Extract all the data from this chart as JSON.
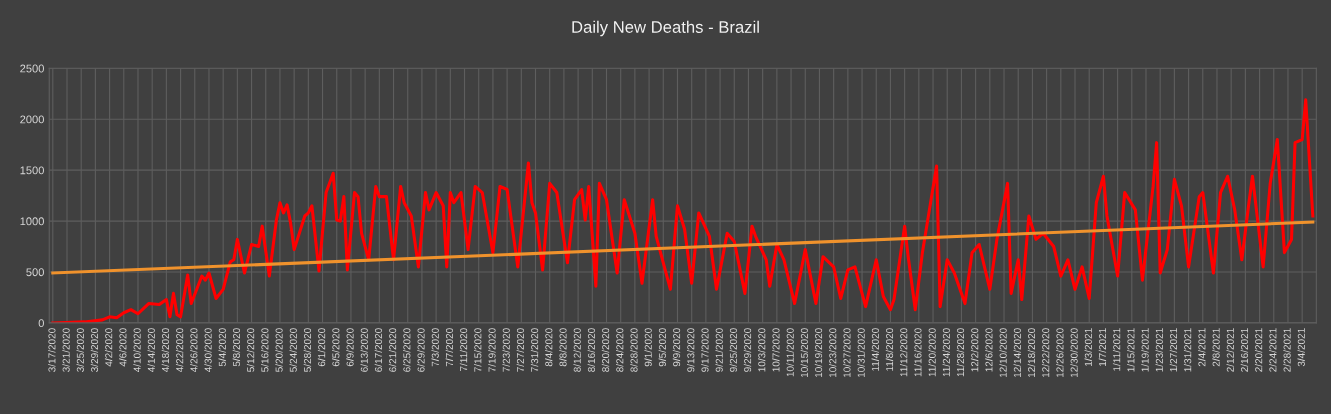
{
  "chart_data": {
    "type": "line",
    "title": "Daily New Deaths - Brazil",
    "ylim": [
      0,
      2500
    ],
    "yticks": [
      0,
      500,
      1000,
      1500,
      2000,
      2500
    ],
    "xlim": [
      "2020-03-16",
      "2021-03-08"
    ],
    "xticks": [
      {
        "value": "2020-03-17",
        "label": "3/17/2020"
      },
      {
        "value": "2020-03-21",
        "label": "3/21/2020"
      },
      {
        "value": "2020-03-25",
        "label": "3/25/2020"
      },
      {
        "value": "2020-03-29",
        "label": "3/29/2020"
      },
      {
        "value": "2020-04-02",
        "label": "4/2/2020"
      },
      {
        "value": "2020-04-06",
        "label": "4/6/2020"
      },
      {
        "value": "2020-04-10",
        "label": "4/10/2020"
      },
      {
        "value": "2020-04-14",
        "label": "4/14/2020"
      },
      {
        "value": "2020-04-18",
        "label": "4/18/2020"
      },
      {
        "value": "2020-04-22",
        "label": "4/22/2020"
      },
      {
        "value": "2020-04-26",
        "label": "4/26/2020"
      },
      {
        "value": "2020-04-30",
        "label": "4/30/2020"
      },
      {
        "value": "2020-05-04",
        "label": "5/4/2020"
      },
      {
        "value": "2020-05-08",
        "label": "5/8/2020"
      },
      {
        "value": "2020-05-12",
        "label": "5/12/2020"
      },
      {
        "value": "2020-05-16",
        "label": "5/16/2020"
      },
      {
        "value": "2020-05-20",
        "label": "5/20/2020"
      },
      {
        "value": "2020-05-24",
        "label": "5/24/2020"
      },
      {
        "value": "2020-05-28",
        "label": "5/28/2020"
      },
      {
        "value": "2020-06-01",
        "label": "6/1/2020"
      },
      {
        "value": "2020-06-05",
        "label": "6/5/2020"
      },
      {
        "value": "2020-06-09",
        "label": "6/9/2020"
      },
      {
        "value": "2020-06-13",
        "label": "6/13/2020"
      },
      {
        "value": "2020-06-17",
        "label": "6/17/2020"
      },
      {
        "value": "2020-06-21",
        "label": "6/21/2020"
      },
      {
        "value": "2020-06-25",
        "label": "6/25/2020"
      },
      {
        "value": "2020-06-29",
        "label": "6/29/2020"
      },
      {
        "value": "2020-07-03",
        "label": "7/3/2020"
      },
      {
        "value": "2020-07-07",
        "label": "7/7/2020"
      },
      {
        "value": "2020-07-11",
        "label": "7/11/2020"
      },
      {
        "value": "2020-07-15",
        "label": "7/15/2020"
      },
      {
        "value": "2020-07-19",
        "label": "7/19/2020"
      },
      {
        "value": "2020-07-23",
        "label": "7/23/2020"
      },
      {
        "value": "2020-07-27",
        "label": "7/27/2020"
      },
      {
        "value": "2020-07-31",
        "label": "7/31/2020"
      },
      {
        "value": "2020-08-04",
        "label": "8/4/2020"
      },
      {
        "value": "2020-08-08",
        "label": "8/8/2020"
      },
      {
        "value": "2020-08-12",
        "label": "8/12/2020"
      },
      {
        "value": "2020-08-16",
        "label": "8/16/2020"
      },
      {
        "value": "2020-08-20",
        "label": "8/20/2020"
      },
      {
        "value": "2020-08-24",
        "label": "8/24/2020"
      },
      {
        "value": "2020-08-28",
        "label": "8/28/2020"
      },
      {
        "value": "2020-09-01",
        "label": "9/1/2020"
      },
      {
        "value": "2020-09-05",
        "label": "9/5/2020"
      },
      {
        "value": "2020-09-09",
        "label": "9/9/2020"
      },
      {
        "value": "2020-09-13",
        "label": "9/13/2020"
      },
      {
        "value": "2020-09-17",
        "label": "9/17/2020"
      },
      {
        "value": "2020-09-21",
        "label": "9/21/2020"
      },
      {
        "value": "2020-09-25",
        "label": "9/25/2020"
      },
      {
        "value": "2020-09-29",
        "label": "9/29/2020"
      },
      {
        "value": "2020-10-03",
        "label": "10/3/2020"
      },
      {
        "value": "2020-10-07",
        "label": "10/7/2020"
      },
      {
        "value": "2020-10-11",
        "label": "10/11/2020"
      },
      {
        "value": "2020-10-15",
        "label": "10/15/2020"
      },
      {
        "value": "2020-10-19",
        "label": "10/19/2020"
      },
      {
        "value": "2020-10-23",
        "label": "10/23/2020"
      },
      {
        "value": "2020-10-27",
        "label": "10/27/2020"
      },
      {
        "value": "2020-10-31",
        "label": "10/31/2020"
      },
      {
        "value": "2020-11-04",
        "label": "11/4/2020"
      },
      {
        "value": "2020-11-08",
        "label": "11/8/2020"
      },
      {
        "value": "2020-11-12",
        "label": "11/12/2020"
      },
      {
        "value": "2020-11-16",
        "label": "11/16/2020"
      },
      {
        "value": "2020-11-20",
        "label": "11/20/2020"
      },
      {
        "value": "2020-11-24",
        "label": "11/24/2020"
      },
      {
        "value": "2020-11-28",
        "label": "11/28/2020"
      },
      {
        "value": "2020-12-02",
        "label": "12/2/2020"
      },
      {
        "value": "2020-12-06",
        "label": "12/6/2020"
      },
      {
        "value": "2020-12-10",
        "label": "12/10/2020"
      },
      {
        "value": "2020-12-14",
        "label": "12/14/2020"
      },
      {
        "value": "2020-12-18",
        "label": "12/18/2020"
      },
      {
        "value": "2020-12-22",
        "label": "12/22/2020"
      },
      {
        "value": "2020-12-26",
        "label": "12/26/2020"
      },
      {
        "value": "2020-12-30",
        "label": "12/30/2020"
      },
      {
        "value": "2021-01-03",
        "label": "1/3/2021"
      },
      {
        "value": "2021-01-07",
        "label": "1/7/2021"
      },
      {
        "value": "2021-01-11",
        "label": "1/11/2021"
      },
      {
        "value": "2021-01-15",
        "label": "1/15/2021"
      },
      {
        "value": "2021-01-19",
        "label": "1/19/2021"
      },
      {
        "value": "2021-01-23",
        "label": "1/23/2021"
      },
      {
        "value": "2021-01-27",
        "label": "1/27/2021"
      },
      {
        "value": "2021-01-31",
        "label": "1/31/2021"
      },
      {
        "value": "2021-02-04",
        "label": "2/4/2021"
      },
      {
        "value": "2021-02-08",
        "label": "2/8/2021"
      },
      {
        "value": "2021-02-12",
        "label": "2/12/2021"
      },
      {
        "value": "2021-02-16",
        "label": "2/16/2021"
      },
      {
        "value": "2021-02-20",
        "label": "2/20/2021"
      },
      {
        "value": "2021-02-24",
        "label": "2/24/2021"
      },
      {
        "value": "2021-02-28",
        "label": "2/28/2021"
      },
      {
        "value": "2021-03-04",
        "label": "3/4/2021"
      }
    ],
    "grid": true,
    "marker": "none",
    "line_style": "solid",
    "series": [
      {
        "color": "#ff0000",
        "x": [
          "2020-03-17",
          "2020-03-26",
          "2020-03-31",
          "2020-04-02",
          "2020-04-04",
          "2020-04-06",
          "2020-04-08",
          "2020-04-10",
          "2020-04-13",
          "2020-04-16",
          "2020-04-18",
          "2020-04-19",
          "2020-04-20",
          "2020-04-21",
          "2020-04-22",
          "2020-04-24",
          "2020-04-25",
          "2020-04-28",
          "2020-04-29",
          "2020-04-30",
          "2020-05-02",
          "2020-05-04",
          "2020-05-06",
          "2020-05-07",
          "2020-05-08",
          "2020-05-10",
          "2020-05-12",
          "2020-05-14",
          "2020-05-15",
          "2020-05-17",
          "2020-05-19",
          "2020-05-20",
          "2020-05-21",
          "2020-05-22",
          "2020-05-23",
          "2020-05-24",
          "2020-05-27",
          "2020-05-28",
          "2020-05-29",
          "2020-05-31",
          "2020-06-02",
          "2020-06-04",
          "2020-06-05",
          "2020-06-06",
          "2020-06-07",
          "2020-06-08",
          "2020-06-10",
          "2020-06-11",
          "2020-06-12",
          "2020-06-14",
          "2020-06-16",
          "2020-06-17",
          "2020-06-19",
          "2020-06-21",
          "2020-06-23",
          "2020-06-24",
          "2020-06-26",
          "2020-06-28",
          "2020-06-30",
          "2020-07-01",
          "2020-07-03",
          "2020-07-05",
          "2020-07-06",
          "2020-07-07",
          "2020-07-08",
          "2020-07-10",
          "2020-07-12",
          "2020-07-14",
          "2020-07-16",
          "2020-07-19",
          "2020-07-21",
          "2020-07-23",
          "2020-07-26",
          "2020-07-29",
          "2020-07-30",
          "2020-07-31",
          "2020-08-02",
          "2020-08-04",
          "2020-08-06",
          "2020-08-09",
          "2020-08-11",
          "2020-08-13",
          "2020-08-14",
          "2020-08-15",
          "2020-08-17",
          "2020-08-18",
          "2020-08-20",
          "2020-08-23",
          "2020-08-25",
          "2020-08-28",
          "2020-08-30",
          "2020-09-02",
          "2020-09-03",
          "2020-09-07",
          "2020-09-09",
          "2020-09-11",
          "2020-09-13",
          "2020-09-15",
          "2020-09-18",
          "2020-09-20",
          "2020-09-23",
          "2020-09-25",
          "2020-09-28",
          "2020-09-30",
          "2020-10-01",
          "2020-10-04",
          "2020-10-05",
          "2020-10-07",
          "2020-10-09",
          "2020-10-12",
          "2020-10-15",
          "2020-10-18",
          "2020-10-20",
          "2020-10-23",
          "2020-10-25",
          "2020-10-27",
          "2020-10-29",
          "2020-11-01",
          "2020-11-04",
          "2020-11-06",
          "2020-11-08",
          "2020-11-09",
          "2020-11-12",
          "2020-11-13",
          "2020-11-15",
          "2020-11-17",
          "2020-11-21",
          "2020-11-22",
          "2020-11-24",
          "2020-11-26",
          "2020-11-29",
          "2020-12-01",
          "2020-12-03",
          "2020-12-06",
          "2020-12-08",
          "2020-12-11",
          "2020-12-12",
          "2020-12-14",
          "2020-12-15",
          "2020-12-17",
          "2020-12-19",
          "2020-12-21",
          "2020-12-24",
          "2020-12-26",
          "2020-12-28",
          "2020-12-30",
          "2021-01-01",
          "2021-01-03",
          "2021-01-05",
          "2021-01-07",
          "2021-01-08",
          "2021-01-11",
          "2021-01-13",
          "2021-01-16",
          "2021-01-18",
          "2021-01-21",
          "2021-01-22",
          "2021-01-23",
          "2021-01-25",
          "2021-01-27",
          "2021-01-29",
          "2021-01-31",
          "2021-02-03",
          "2021-02-04",
          "2021-02-07",
          "2021-02-09",
          "2021-02-11",
          "2021-02-13",
          "2021-02-15",
          "2021-02-17",
          "2021-02-18",
          "2021-02-21",
          "2021-02-23",
          "2021-02-25",
          "2021-02-27",
          "2021-03-01",
          "2021-03-02",
          "2021-03-04",
          "2021-03-05",
          "2021-03-07"
        ],
        "values": [
          0,
          10,
          30,
          60,
          50,
          100,
          130,
          90,
          190,
          180,
          230,
          60,
          290,
          80,
          60,
          470,
          190,
          460,
          420,
          490,
          240,
          330,
          600,
          620,
          820,
          490,
          770,
          750,
          950,
          460,
          1010,
          1180,
          1080,
          1160,
          980,
          720,
          1050,
          1080,
          1150,
          510,
          1280,
          1470,
          1010,
          1000,
          1240,
          520,
          1280,
          1240,
          880,
          620,
          1340,
          1240,
          1240,
          620,
          1340,
          1180,
          1050,
          550,
          1280,
          1110,
          1280,
          1150,
          550,
          1280,
          1180,
          1280,
          720,
          1340,
          1280,
          690,
          1340,
          1310,
          550,
          1570,
          1180,
          1080,
          520,
          1370,
          1280,
          590,
          1210,
          1310,
          1010,
          1340,
          360,
          1370,
          1210,
          490,
          1210,
          880,
          390,
          1210,
          850,
          330,
          1150,
          920,
          390,
          1080,
          850,
          330,
          880,
          800,
          290,
          950,
          850,
          620,
          360,
          770,
          620,
          190,
          720,
          190,
          650,
          550,
          240,
          520,
          550,
          160,
          620,
          260,
          130,
          230,
          950,
          650,
          130,
          690,
          1540,
          160,
          620,
          490,
          190,
          690,
          770,
          330,
          820,
          1370,
          290,
          620,
          230,
          1050,
          820,
          880,
          750,
          460,
          620,
          330,
          550,
          240,
          1180,
          1440,
          1050,
          460,
          1280,
          1110,
          420,
          1340,
          1770,
          490,
          720,
          1410,
          1150,
          550,
          1240,
          1280,
          490,
          1280,
          1440,
          1110,
          620,
          1180,
          1440,
          550,
          1370,
          1800,
          690,
          820,
          1770,
          1800,
          2190,
          1050
        ]
      },
      {
        "color": "#f0922c",
        "x": [
          "2020-03-17",
          "2021-03-07"
        ],
        "values": [
          490,
          990
        ]
      }
    ]
  }
}
